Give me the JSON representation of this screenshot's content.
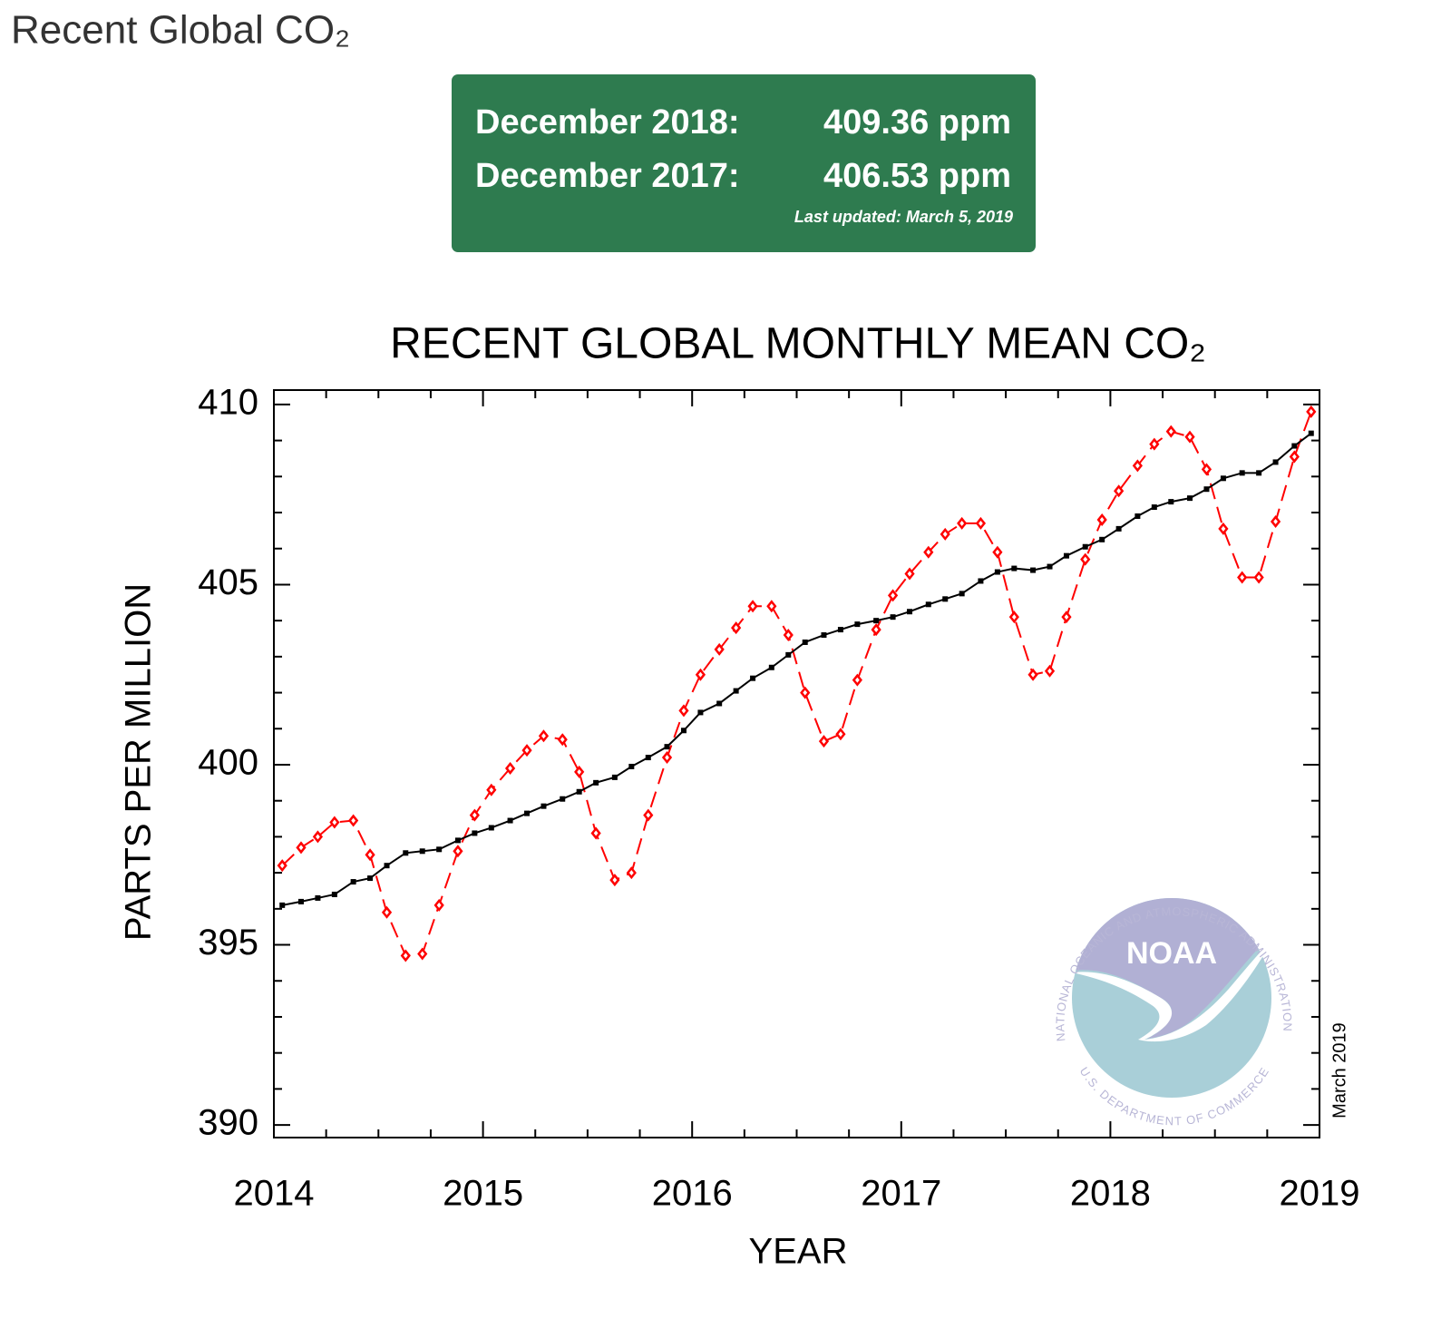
{
  "page_title": "Recent Global CO₂",
  "info_box": {
    "rows": [
      {
        "label": "December 2018:",
        "value": "409.36 ppm"
      },
      {
        "label": "December 2017:",
        "value": "406.53 ppm"
      }
    ],
    "updated": "Last updated: March 5, 2019"
  },
  "logo": {
    "name": "NOAA",
    "ring_top": "NATIONAL OCEANIC AND ATMOSPHERIC ADMINISTRATION",
    "ring_bottom": "U.S. DEPARTMENT OF COMMERCE"
  },
  "chart_data": {
    "type": "line",
    "title": "RECENT GLOBAL MONTHLY MEAN CO₂",
    "x_label": "YEAR",
    "y_label": "PARTS PER MILLION",
    "annotation": "March 2019",
    "x": [
      2014.04,
      2014.13,
      2014.21,
      2014.29,
      2014.38,
      2014.46,
      2014.54,
      2014.63,
      2014.71,
      2014.79,
      2014.88,
      2014.96,
      2015.04,
      2015.13,
      2015.21,
      2015.29,
      2015.38,
      2015.46,
      2015.54,
      2015.63,
      2015.71,
      2015.79,
      2015.88,
      2015.96,
      2016.04,
      2016.13,
      2016.21,
      2016.29,
      2016.38,
      2016.46,
      2016.54,
      2016.63,
      2016.71,
      2016.79,
      2016.88,
      2016.96,
      2017.04,
      2017.13,
      2017.21,
      2017.29,
      2017.38,
      2017.46,
      2017.54,
      2017.63,
      2017.71,
      2017.79,
      2017.88,
      2017.96,
      2018.04,
      2018.13,
      2018.21,
      2018.29,
      2018.38,
      2018.46,
      2018.54,
      2018.63,
      2018.71,
      2018.79,
      2018.88,
      2018.96
    ],
    "series": [
      {
        "color": "#ff0000",
        "line_style": "dashed",
        "marker": "diamond",
        "values": [
          397.2,
          397.7,
          398.0,
          398.4,
          398.45,
          397.5,
          395.9,
          394.7,
          394.75,
          396.1,
          397.6,
          398.6,
          399.3,
          399.9,
          400.4,
          400.8,
          400.7,
          399.8,
          398.1,
          396.8,
          397.0,
          398.6,
          400.2,
          401.5,
          402.5,
          403.2,
          403.8,
          404.4,
          404.4,
          403.6,
          402.0,
          400.65,
          400.85,
          402.35,
          403.75,
          404.7,
          405.3,
          405.9,
          406.4,
          406.7,
          406.7,
          405.9,
          404.1,
          402.5,
          402.6,
          404.1,
          405.7,
          406.8,
          407.6,
          408.3,
          408.9,
          409.25,
          409.1,
          408.2,
          406.55,
          405.2,
          405.2,
          406.75,
          408.55,
          409.8
        ]
      },
      {
        "color": "#000000",
        "line_style": "solid",
        "marker": "square",
        "values": [
          396.1,
          396.2,
          396.3,
          396.4,
          396.75,
          396.85,
          397.2,
          397.55,
          397.6,
          397.65,
          397.9,
          398.1,
          398.25,
          398.45,
          398.65,
          398.85,
          399.05,
          399.25,
          399.5,
          399.65,
          399.95,
          400.2,
          400.5,
          400.95,
          401.45,
          401.7,
          402.05,
          402.4,
          402.7,
          403.05,
          403.4,
          403.6,
          403.75,
          403.9,
          404.0,
          404.1,
          404.25,
          404.45,
          404.6,
          404.75,
          405.1,
          405.35,
          405.45,
          405.4,
          405.5,
          405.8,
          406.05,
          406.25,
          406.55,
          406.9,
          407.15,
          407.3,
          407.4,
          407.65,
          407.95,
          408.1,
          408.1,
          408.4,
          408.85,
          409.2
        ]
      }
    ],
    "xlim": [
      2014,
      2019
    ],
    "xticks": [
      2014,
      2015,
      2016,
      2017,
      2018,
      2019
    ],
    "ylim": [
      389.65,
      410.4
    ],
    "yticks": [
      390,
      395,
      400,
      405,
      410
    ]
  }
}
